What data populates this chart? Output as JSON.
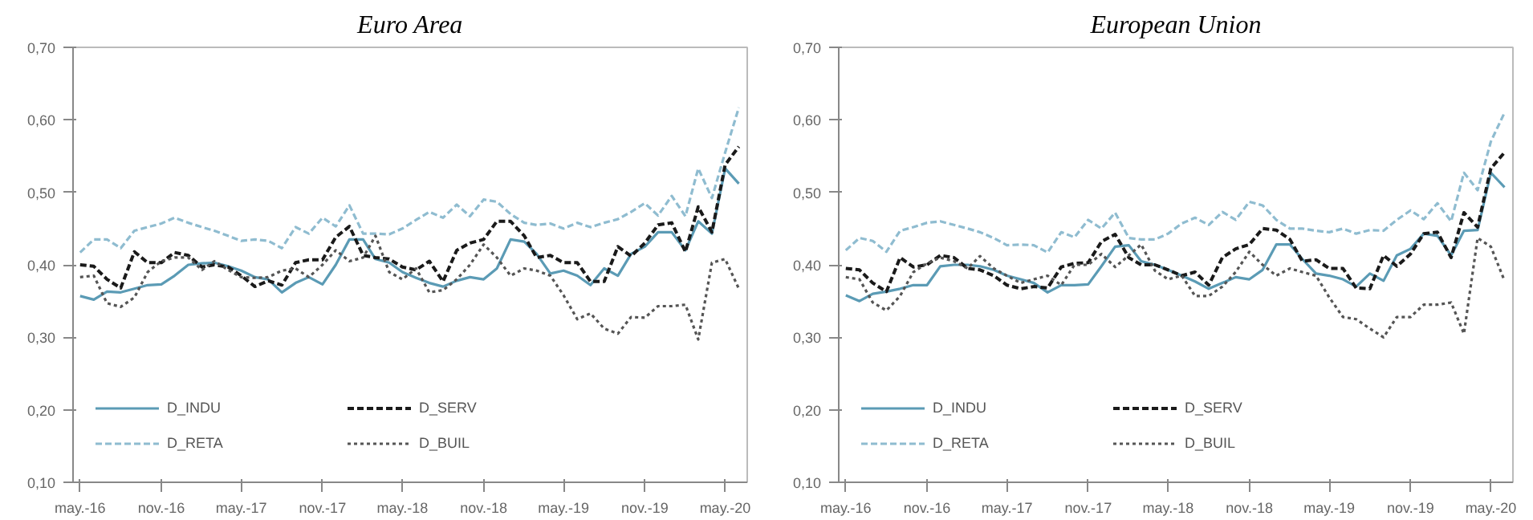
{
  "chart_data": [
    {
      "type": "line",
      "title": "Euro Area",
      "x": [
        "2016-05",
        "2016-06",
        "2016-07",
        "2016-08",
        "2016-09",
        "2016-10",
        "2016-11",
        "2016-12",
        "2017-01",
        "2017-02",
        "2017-03",
        "2017-04",
        "2017-05",
        "2017-06",
        "2017-07",
        "2017-08",
        "2017-09",
        "2017-10",
        "2017-11",
        "2017-12",
        "2018-01",
        "2018-02",
        "2018-03",
        "2018-04",
        "2018-05",
        "2018-06",
        "2018-07",
        "2018-08",
        "2018-09",
        "2018-10",
        "2018-11",
        "2018-12",
        "2019-01",
        "2019-02",
        "2019-03",
        "2019-04",
        "2019-05",
        "2019-06",
        "2019-07",
        "2019-08",
        "2019-09",
        "2019-10",
        "2019-11",
        "2019-12",
        "2020-01",
        "2020-02",
        "2020-03",
        "2020-04",
        "2020-05",
        "2020-06"
      ],
      "series": [
        {
          "name": "D_INDU",
          "color": "#5b9bb5",
          "line_style": "solid",
          "values": [
            0.357,
            0.352,
            0.363,
            0.362,
            0.367,
            0.372,
            0.373,
            0.385,
            0.4,
            0.402,
            0.403,
            0.398,
            0.392,
            0.383,
            0.38,
            0.362,
            0.375,
            0.383,
            0.373,
            0.4,
            0.435,
            0.435,
            0.408,
            0.403,
            0.39,
            0.382,
            0.375,
            0.37,
            0.378,
            0.383,
            0.38,
            0.395,
            0.435,
            0.432,
            0.415,
            0.388,
            0.392,
            0.385,
            0.372,
            0.395,
            0.385,
            0.415,
            0.425,
            0.445,
            0.445,
            0.42,
            0.46,
            0.443,
            0.533,
            0.512
          ]
        },
        {
          "name": "D_SERV",
          "color": "#1a1a1a",
          "line_style": "dashed",
          "values": [
            0.4,
            0.398,
            0.38,
            0.368,
            0.418,
            0.403,
            0.403,
            0.417,
            0.413,
            0.397,
            0.4,
            0.397,
            0.385,
            0.37,
            0.378,
            0.372,
            0.403,
            0.407,
            0.407,
            0.438,
            0.453,
            0.413,
            0.41,
            0.408,
            0.397,
            0.393,
            0.405,
            0.377,
            0.42,
            0.43,
            0.435,
            0.46,
            0.46,
            0.44,
            0.41,
            0.413,
            0.403,
            0.403,
            0.377,
            0.377,
            0.425,
            0.412,
            0.43,
            0.455,
            0.458,
            0.418,
            0.48,
            0.445,
            0.538,
            0.563
          ]
        },
        {
          "name": "D_RETA",
          "color": "#8fbcd0",
          "line_style": "dashed",
          "values": [
            0.417,
            0.435,
            0.435,
            0.423,
            0.447,
            0.452,
            0.457,
            0.465,
            0.458,
            0.452,
            0.447,
            0.44,
            0.433,
            0.435,
            0.433,
            0.423,
            0.452,
            0.443,
            0.465,
            0.453,
            0.482,
            0.443,
            0.443,
            0.442,
            0.45,
            0.462,
            0.473,
            0.465,
            0.483,
            0.467,
            0.49,
            0.487,
            0.47,
            0.458,
            0.455,
            0.457,
            0.45,
            0.458,
            0.452,
            0.458,
            0.463,
            0.473,
            0.485,
            0.468,
            0.495,
            0.467,
            0.533,
            0.492,
            0.555,
            0.617
          ]
        },
        {
          "name": "D_BUIL",
          "color": "#555555",
          "line_style": "dotted",
          "values": [
            0.383,
            0.385,
            0.347,
            0.342,
            0.355,
            0.39,
            0.405,
            0.41,
            0.41,
            0.393,
            0.405,
            0.393,
            0.383,
            0.382,
            0.383,
            0.392,
            0.395,
            0.383,
            0.4,
            0.42,
            0.405,
            0.41,
            0.44,
            0.39,
            0.38,
            0.395,
            0.362,
            0.365,
            0.38,
            0.4,
            0.428,
            0.41,
            0.385,
            0.395,
            0.392,
            0.385,
            0.358,
            0.325,
            0.333,
            0.312,
            0.305,
            0.328,
            0.327,
            0.343,
            0.343,
            0.345,
            0.297,
            0.403,
            0.408,
            0.367
          ]
        }
      ],
      "xlim": [
        "2016-04-15",
        "2020-06-20"
      ],
      "ylim": [
        0.1,
        0.7
      ],
      "xticks": [
        {
          "value": "2016-05",
          "label": "may.-16"
        },
        {
          "value": "2016-11",
          "label": "nov.-16"
        },
        {
          "value": "2017-05",
          "label": "may.-17"
        },
        {
          "value": "2017-11",
          "label": "nov.-17"
        },
        {
          "value": "2018-05",
          "label": "may.-18"
        },
        {
          "value": "2018-11",
          "label": "nov.-18"
        },
        {
          "value": "2019-05",
          "label": "may.-19"
        },
        {
          "value": "2019-11",
          "label": "nov.-19"
        },
        {
          "value": "2020-05",
          "label": "may.-20"
        }
      ],
      "yticks": [
        {
          "value": 0.1,
          "label": "0,10"
        },
        {
          "value": 0.2,
          "label": "0,20"
        },
        {
          "value": 0.3,
          "label": "0,30"
        },
        {
          "value": 0.4,
          "label": "0,40"
        },
        {
          "value": 0.5,
          "label": "0,50"
        },
        {
          "value": 0.6,
          "label": "0,60"
        },
        {
          "value": 0.7,
          "label": "0,70"
        }
      ],
      "grid": false,
      "legend": "bottom left"
    },
    {
      "type": "line",
      "title": "European Union",
      "x": [
        "2016-05",
        "2016-06",
        "2016-07",
        "2016-08",
        "2016-09",
        "2016-10",
        "2016-11",
        "2016-12",
        "2017-01",
        "2017-02",
        "2017-03",
        "2017-04",
        "2017-05",
        "2017-06",
        "2017-07",
        "2017-08",
        "2017-09",
        "2017-10",
        "2017-11",
        "2017-12",
        "2018-01",
        "2018-02",
        "2018-03",
        "2018-04",
        "2018-05",
        "2018-06",
        "2018-07",
        "2018-08",
        "2018-09",
        "2018-10",
        "2018-11",
        "2018-12",
        "2019-01",
        "2019-02",
        "2019-03",
        "2019-04",
        "2019-05",
        "2019-06",
        "2019-07",
        "2019-08",
        "2019-09",
        "2019-10",
        "2019-11",
        "2019-12",
        "2020-01",
        "2020-02",
        "2020-03",
        "2020-04",
        "2020-05",
        "2020-06"
      ],
      "series": [
        {
          "name": "D_INDU",
          "color": "#5b9bb5",
          "line_style": "solid",
          "values": [
            0.358,
            0.35,
            0.36,
            0.363,
            0.367,
            0.372,
            0.372,
            0.398,
            0.4,
            0.4,
            0.398,
            0.393,
            0.385,
            0.38,
            0.375,
            0.362,
            0.372,
            0.372,
            0.373,
            0.398,
            0.425,
            0.427,
            0.405,
            0.4,
            0.393,
            0.385,
            0.377,
            0.367,
            0.375,
            0.383,
            0.38,
            0.393,
            0.428,
            0.428,
            0.408,
            0.388,
            0.385,
            0.38,
            0.37,
            0.388,
            0.378,
            0.413,
            0.422,
            0.443,
            0.44,
            0.413,
            0.447,
            0.448,
            0.527,
            0.507
          ]
        },
        {
          "name": "D_SERV",
          "color": "#1a1a1a",
          "line_style": "dashed",
          "values": [
            0.395,
            0.393,
            0.375,
            0.363,
            0.41,
            0.397,
            0.4,
            0.413,
            0.41,
            0.395,
            0.393,
            0.385,
            0.372,
            0.367,
            0.37,
            0.368,
            0.397,
            0.402,
            0.403,
            0.432,
            0.442,
            0.41,
            0.4,
            0.4,
            0.393,
            0.385,
            0.39,
            0.372,
            0.41,
            0.422,
            0.428,
            0.45,
            0.448,
            0.435,
            0.405,
            0.407,
            0.395,
            0.395,
            0.368,
            0.367,
            0.413,
            0.398,
            0.415,
            0.443,
            0.445,
            0.41,
            0.472,
            0.452,
            0.533,
            0.555
          ]
        },
        {
          "name": "D_RETA",
          "color": "#8fbcd0",
          "line_style": "dashed",
          "values": [
            0.42,
            0.437,
            0.433,
            0.418,
            0.447,
            0.452,
            0.458,
            0.46,
            0.455,
            0.45,
            0.445,
            0.437,
            0.427,
            0.428,
            0.427,
            0.417,
            0.445,
            0.438,
            0.462,
            0.45,
            0.472,
            0.437,
            0.435,
            0.435,
            0.443,
            0.457,
            0.465,
            0.455,
            0.473,
            0.462,
            0.487,
            0.482,
            0.462,
            0.45,
            0.45,
            0.447,
            0.445,
            0.45,
            0.443,
            0.448,
            0.447,
            0.462,
            0.475,
            0.463,
            0.485,
            0.46,
            0.527,
            0.503,
            0.57,
            0.61
          ]
        },
        {
          "name": "D_BUIL",
          "color": "#555555",
          "line_style": "dotted",
          "values": [
            0.383,
            0.38,
            0.348,
            0.337,
            0.357,
            0.39,
            0.402,
            0.41,
            0.405,
            0.395,
            0.412,
            0.395,
            0.385,
            0.375,
            0.38,
            0.385,
            0.372,
            0.4,
            0.4,
            0.415,
            0.397,
            0.413,
            0.428,
            0.392,
            0.38,
            0.385,
            0.357,
            0.357,
            0.37,
            0.39,
            0.418,
            0.4,
            0.385,
            0.395,
            0.39,
            0.385,
            0.355,
            0.328,
            0.325,
            0.312,
            0.3,
            0.328,
            0.328,
            0.345,
            0.345,
            0.348,
            0.305,
            0.437,
            0.425,
            0.378
          ]
        }
      ],
      "xlim": [
        "2016-04-15",
        "2020-06-20"
      ],
      "ylim": [
        0.1,
        0.7
      ],
      "xticks": [
        {
          "value": "2016-05",
          "label": "may.-16"
        },
        {
          "value": "2016-11",
          "label": "nov.-16"
        },
        {
          "value": "2017-05",
          "label": "may.-17"
        },
        {
          "value": "2017-11",
          "label": "nov.-17"
        },
        {
          "value": "2018-05",
          "label": "may.-18"
        },
        {
          "value": "2018-11",
          "label": "nov.-18"
        },
        {
          "value": "2019-05",
          "label": "may.-19"
        },
        {
          "value": "2019-11",
          "label": "nov.-19"
        },
        {
          "value": "2020-05",
          "label": "may.-20"
        }
      ],
      "yticks": [
        {
          "value": 0.1,
          "label": "0,10"
        },
        {
          "value": 0.2,
          "label": "0,20"
        },
        {
          "value": 0.3,
          "label": "0,30"
        },
        {
          "value": 0.4,
          "label": "0,40"
        },
        {
          "value": 0.5,
          "label": "0,50"
        },
        {
          "value": 0.6,
          "label": "0,60"
        },
        {
          "value": 0.7,
          "label": "0,70"
        }
      ],
      "grid": false,
      "legend": "bottom left"
    }
  ]
}
